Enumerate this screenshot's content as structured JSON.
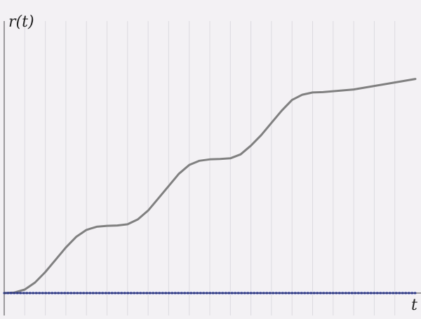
{
  "chart_data": {
    "type": "line",
    "title": "",
    "xlabel": "t",
    "ylabel": "r(t)",
    "grid": true,
    "xlim": [
      0,
      20
    ],
    "ylim": [
      -0.05,
      1.55
    ],
    "x_gridlines": [
      1,
      2,
      3,
      4,
      5,
      6,
      7,
      8,
      9,
      10,
      11,
      12,
      13,
      14,
      15,
      16,
      17,
      18,
      19
    ],
    "series": [
      {
        "style": "solid",
        "color": "#808080",
        "x": [
          0,
          0.5,
          1,
          1.5,
          2,
          2.5,
          3,
          3.5,
          4,
          4.5,
          5,
          5.5,
          6,
          6.5,
          7,
          7.5,
          8,
          8.5,
          9,
          9.5,
          10,
          10.5,
          11,
          11.5,
          12,
          12.5,
          13,
          13.5,
          14,
          14.5,
          15,
          15.5,
          16,
          16.5,
          17,
          17.5,
          18,
          18.5,
          19,
          19.5,
          20
        ],
        "y": [
          0.0,
          0.003,
          0.02,
          0.06,
          0.12,
          0.19,
          0.26,
          0.32,
          0.36,
          0.378,
          0.383,
          0.385,
          0.392,
          0.42,
          0.47,
          0.54,
          0.61,
          0.68,
          0.73,
          0.754,
          0.762,
          0.764,
          0.768,
          0.79,
          0.84,
          0.9,
          0.97,
          1.04,
          1.1,
          1.13,
          1.143,
          1.145,
          1.15,
          1.155,
          1.16,
          1.17,
          1.18,
          1.19,
          1.2,
          1.21,
          1.22
        ]
      },
      {
        "style": "dotted",
        "color": "#1c2fb5",
        "x": [
          0,
          20
        ],
        "y": [
          0,
          0
        ]
      }
    ]
  }
}
